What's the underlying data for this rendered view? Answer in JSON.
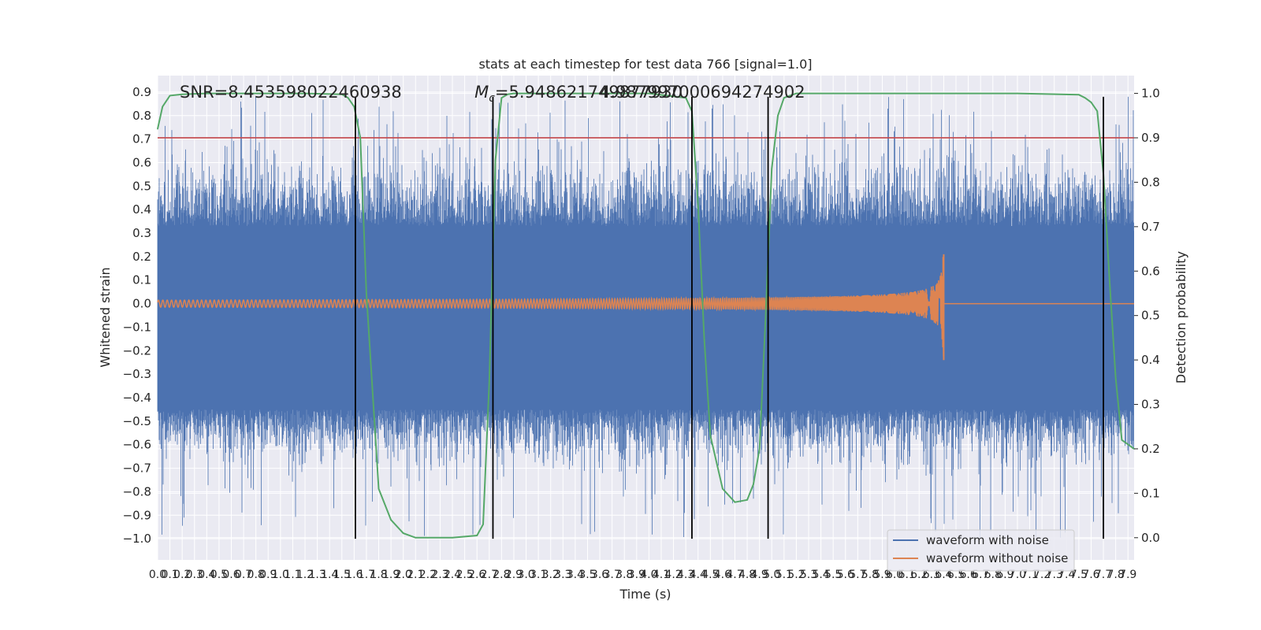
{
  "chart_data": {
    "type": "line",
    "title": "stats at each timestep for test data 766 [signal=1.0]",
    "xlabel": "Time (s)",
    "ylabel": "Whitened strain",
    "ylabel_right": "Detection probability",
    "xlim": [
      0.0,
      7.95
    ],
    "ylim": [
      -1.09,
      0.97
    ],
    "ylim_right": [
      -0.05,
      1.04
    ],
    "x_ticks": [
      0.0,
      0.1,
      0.2,
      0.3,
      0.4,
      0.5,
      0.6,
      0.7,
      0.8,
      0.9,
      1.0,
      1.1,
      1.2,
      1.3,
      1.4,
      1.5,
      1.6,
      1.7,
      1.8,
      1.9,
      2.0,
      2.1,
      2.2,
      2.3,
      2.4,
      2.5,
      2.6,
      2.7,
      2.8,
      2.9,
      3.0,
      3.1,
      3.2,
      3.3,
      3.4,
      3.5,
      3.6,
      3.7,
      3.8,
      3.9,
      4.0,
      4.1,
      4.2,
      4.3,
      4.4,
      4.5,
      4.6,
      4.7,
      4.8,
      4.9,
      5.0,
      5.1,
      5.2,
      5.3,
      5.4,
      5.5,
      5.6,
      5.7,
      5.8,
      5.9,
      6.0,
      6.1,
      6.2,
      6.3,
      6.4,
      6.5,
      6.6,
      6.7,
      6.8,
      6.9,
      7.0,
      7.1,
      7.2,
      7.3,
      7.4,
      7.5,
      7.6,
      7.7,
      7.8,
      7.9
    ],
    "y_ticks": [
      0.9,
      0.8,
      0.7,
      0.6,
      0.5,
      0.4,
      0.3,
      0.2,
      0.1,
      0.0,
      -0.1,
      -0.2,
      -0.3,
      -0.4,
      -0.5,
      -0.6,
      -0.7,
      -0.8,
      -0.9,
      -1.0
    ],
    "y_tick_labels": [
      "0.9",
      "0.8",
      "0.7",
      "0.6",
      "0.5",
      "0.4",
      "0.3",
      "0.2",
      "0.1",
      "0.0",
      "−0.1",
      "−0.2",
      "−0.3",
      "−0.4",
      "−0.5",
      "−0.6",
      "−0.7",
      "−0.8",
      "−0.9",
      "−1.0"
    ],
    "y_ticks_right": [
      1.0,
      0.9,
      0.8,
      0.7,
      0.6,
      0.5,
      0.4,
      0.3,
      0.2,
      0.1,
      0.0
    ],
    "y_tick_labels_right": [
      "1.0",
      "0.9",
      "0.8",
      "0.7",
      "0.6",
      "0.5",
      "0.4",
      "0.3",
      "0.2",
      "0.1",
      "0.0"
    ],
    "series": [
      {
        "name": "waveform with noise",
        "color": "#4c72b0",
        "axis": "left",
        "description": "dense Gaussian-like whitened noise, core band about -0.43 to 0.31 with spikes reaching about +0.88 / -1.0"
      },
      {
        "name": "waveform without noise",
        "color": "#dd8452",
        "axis": "left",
        "chirp": {
          "start": 0.0,
          "merger": 6.4,
          "amp_start": 0.015,
          "amp_peak": 0.21,
          "amp_min_peak": -0.24
        }
      },
      {
        "name": "detection probability",
        "color": "#55a868",
        "axis": "right",
        "x": [
          0.0,
          0.04,
          0.1,
          0.2,
          0.4,
          0.8,
          1.2,
          1.5,
          1.55,
          1.6,
          1.65,
          1.7,
          1.8,
          1.9,
          2.0,
          2.1,
          2.2,
          2.4,
          2.6,
          2.65,
          2.7,
          2.75,
          2.8,
          2.85,
          2.9,
          3.0,
          3.5,
          4.0,
          4.3,
          4.35,
          4.4,
          4.45,
          4.5,
          4.6,
          4.7,
          4.8,
          4.85,
          4.9,
          4.95,
          5.0,
          5.05,
          5.1,
          5.2,
          5.5,
          6.0,
          6.5,
          7.0,
          7.5,
          7.55,
          7.6,
          7.65,
          7.7,
          7.75,
          7.8,
          7.85,
          7.95
        ],
        "values": [
          0.92,
          0.97,
          0.995,
          0.998,
          1.0,
          1.0,
          1.0,
          0.998,
          0.99,
          0.97,
          0.9,
          0.55,
          0.11,
          0.04,
          0.01,
          0.0,
          0.0,
          0.0,
          0.005,
          0.03,
          0.35,
          0.85,
          0.99,
          0.998,
          1.0,
          1.0,
          1.0,
          1.0,
          0.99,
          0.96,
          0.75,
          0.45,
          0.23,
          0.11,
          0.08,
          0.085,
          0.12,
          0.2,
          0.5,
          0.83,
          0.95,
          0.99,
          1.0,
          1.0,
          1.0,
          1.0,
          1.0,
          0.997,
          0.99,
          0.98,
          0.96,
          0.82,
          0.58,
          0.36,
          0.22,
          0.2
        ]
      }
    ],
    "threshold_line": {
      "value": 0.9,
      "axis": "right",
      "color": "#c44e52"
    },
    "vertical_lines": [
      {
        "x": 1.61,
        "ymin": -1.0,
        "ymax": 0.88
      },
      {
        "x": 2.73,
        "ymin": -1.0,
        "ymax": 0.88
      },
      {
        "x": 4.35,
        "ymin": -1.0,
        "ymax": 0.88
      },
      {
        "x": 4.97,
        "ymin": -1.0,
        "ymax": 0.88
      },
      {
        "x": 7.7,
        "ymin": -1.0,
        "ymax": 0.88
      }
    ],
    "annotations": [
      {
        "text": "SNR=8.453598022460938",
        "x": 0.18,
        "y": 0.9
      },
      {
        "text": "=5.948621749877930",
        "prefix_italic": "M",
        "prefix_sub": "c",
        "x": 2.58,
        "y": 0.9
      },
      {
        "text": "4.987997000694274902",
        "x": 3.6,
        "y": 0.9
      }
    ],
    "legend": {
      "position": "lower-right",
      "entries": [
        "waveform with noise",
        "waveform without noise"
      ]
    },
    "grid": true,
    "colors": {
      "background": "#eaeaf2",
      "grid": "#ffffff",
      "vline": "#000000"
    }
  }
}
